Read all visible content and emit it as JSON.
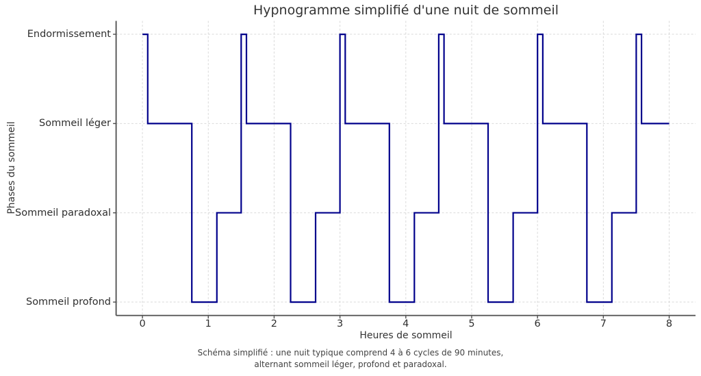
{
  "title": "Hypnogramme simplifié d'une nuit de sommeil",
  "axes": {
    "xlabel": "Heures de sommeil",
    "ylabel": "Phases du sommeil",
    "x_tick_labels": [
      "0",
      "1",
      "2",
      "3",
      "4",
      "5",
      "6",
      "7",
      "8"
    ],
    "y_tick_labels": [
      "Endormissement",
      "Sommeil léger",
      "Sommeil paradoxal",
      "Sommeil profond"
    ]
  },
  "caption": {
    "line1": "Schéma simplifié : une nuit typique comprend 4 à 6 cycles de 90 minutes,",
    "line2": "alternant sommeil léger, profond et paradoxal."
  },
  "colors": {
    "line": "#00008B",
    "grid": "#d9d9d9",
    "spine": "#4d4d4d",
    "tick_mark": "#4d4d4d",
    "title_text": "#333333",
    "tick_text": "#2e2e2e",
    "caption_text": "#424242",
    "background": "#ffffff"
  },
  "chart_data": {
    "type": "line",
    "step_mode": "post",
    "title": "Hypnogramme simplifié d'une nuit de sommeil",
    "xlabel": "Heures de sommeil",
    "ylabel": "Phases du sommeil",
    "x": [
      0,
      0.08,
      0.75,
      1.13,
      1.5,
      1.58,
      2.25,
      2.63,
      3,
      3.08,
      3.75,
      4.13,
      4.5,
      4.58,
      5.25,
      5.63,
      6,
      6.08,
      6.75,
      7.13,
      7.5,
      7.58,
      8
    ],
    "y": [
      4,
      3,
      1,
      2,
      4,
      3,
      1,
      2,
      4,
      3,
      1,
      2,
      4,
      3,
      1,
      2,
      4,
      3,
      1,
      2,
      4,
      3,
      3
    ],
    "y_level_names": {
      "4": "Endormissement",
      "3": "Sommeil léger",
      "2": "Sommeil paradoxal",
      "1": "Sommeil profond"
    },
    "x_ticks": [
      0,
      1,
      2,
      3,
      4,
      5,
      6,
      7,
      8
    ],
    "y_ticks": [
      4,
      3,
      2,
      1
    ],
    "xlim": [
      -0.4,
      8.4
    ],
    "ylim": [
      0.85,
      4.15
    ],
    "grid": true,
    "legend_position": "none",
    "line_color": "#00008B",
    "line_width": 2.2,
    "cycle_length_hours": 1.5,
    "annotation": "Schéma simplifié : une nuit typique comprend 4 à 6 cycles de 90 minutes, alternant sommeil léger, profond et paradoxal."
  }
}
